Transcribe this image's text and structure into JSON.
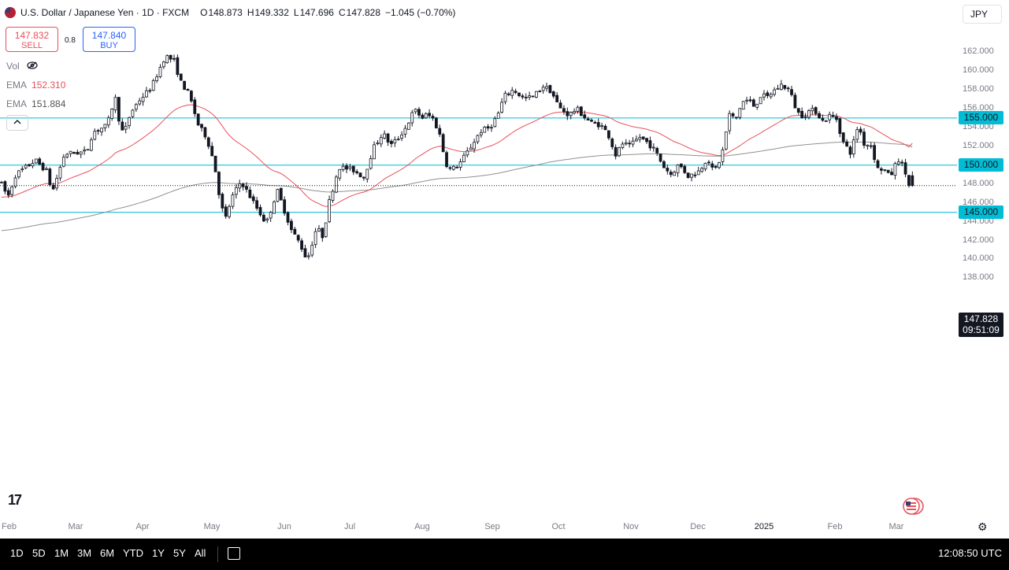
{
  "header": {
    "symbol_title": "U.S. Dollar / Japanese Yen · 1D · FXCM",
    "open_label": "O",
    "open": "148.873",
    "high_label": "H",
    "high": "149.332",
    "low_label": "L",
    "low": "147.696",
    "close_label": "C",
    "close": "147.828",
    "change": "−1.045 (−0.70%)"
  },
  "trade": {
    "sell_price": "147.832",
    "sell_label": "SELL",
    "spread": "0.8",
    "buy_price": "147.840",
    "buy_label": "BUY"
  },
  "indicators": {
    "vol_label": "Vol",
    "ema1_label": "EMA",
    "ema1_value": "152.310",
    "ema2_label": "EMA",
    "ema2_value": "151.884",
    "collapse_icon": "chevron-up-icon"
  },
  "currency_button": "JPY",
  "price_tag": {
    "price": "147.828",
    "countdown": "09:51:09"
  },
  "bottom_bar": {
    "timeframes": [
      "1D",
      "5D",
      "1M",
      "3M",
      "6M",
      "YTD",
      "1Y",
      "5Y",
      "All"
    ],
    "clock": "12:08:50 UTC"
  },
  "colors": {
    "up": "#131722",
    "down": "#131722",
    "ema_fast": "#e8505b",
    "ema_slow": "#909090",
    "hline": "#00bcd4",
    "sell": "#e8505b",
    "buy": "#2962ff"
  },
  "chart_data": {
    "type": "candlestick",
    "y_ticks": [
      "162.000",
      "160.000",
      "158.000",
      "156.000",
      "154.000",
      "152.000",
      "150.000",
      "148.000",
      "146.000",
      "144.000",
      "142.000",
      "140.000",
      "138.000"
    ],
    "ylim": [
      137.2,
      163.4
    ],
    "x_tick_labels": [
      "Feb",
      "Mar",
      "Apr",
      "May",
      "Jun",
      "Jul",
      "Aug",
      "Sep",
      "Oct",
      "Nov",
      "Dec",
      "2025",
      "Feb",
      "Mar"
    ],
    "horizontal_lines": [
      "155.000",
      "150.000",
      "145.000"
    ],
    "last_price": 147.828,
    "ohlc": [],
    "ema_fast": [],
    "ema_slow": []
  }
}
